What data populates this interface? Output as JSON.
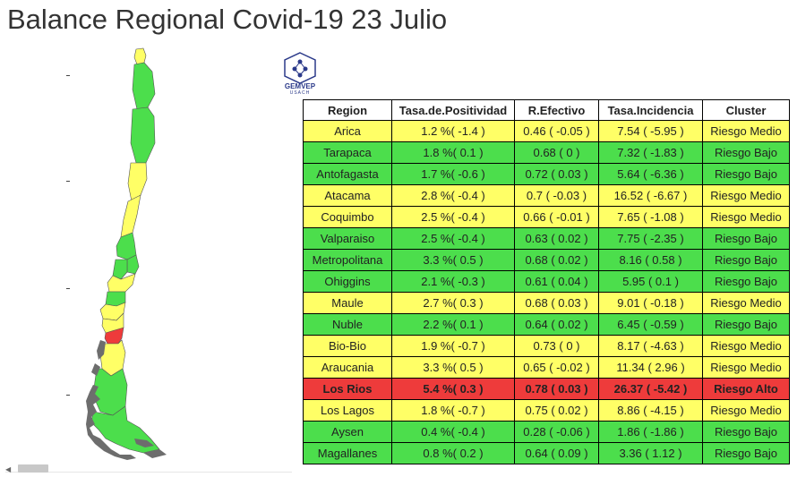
{
  "title": "Balance Regional Covid-19 23 Julio",
  "logo": {
    "name": "GEMVEP",
    "sub": "USACH"
  },
  "colors": {
    "medio": "#ffff66",
    "bajo": "#4cde4c",
    "alto": "#ee3b3b",
    "header": "#ffffff"
  },
  "table": {
    "headers": [
      "Region",
      "Tasa.de.Positividad",
      "R.Efectivo",
      "Tasa.Incidencia",
      "Cluster"
    ],
    "rows": [
      {
        "region": "Arica",
        "pos": "1.2 %( -1.4 )",
        "ref": "0.46 ( -0.05 )",
        "inc": "7.54 ( -5.95 )",
        "cluster": "Riesgo Medio",
        "level": "medio"
      },
      {
        "region": "Tarapaca",
        "pos": "1.8 %( 0.1 )",
        "ref": "0.68 ( 0 )",
        "inc": "7.32 ( -1.83 )",
        "cluster": "Riesgo Bajo",
        "level": "bajo"
      },
      {
        "region": "Antofagasta",
        "pos": "1.7 %( -0.6 )",
        "ref": "0.72 ( 0.03 )",
        "inc": "5.64 ( -6.36 )",
        "cluster": "Riesgo Bajo",
        "level": "bajo"
      },
      {
        "region": "Atacama",
        "pos": "2.8 %( -0.4 )",
        "ref": "0.7 ( -0.03 )",
        "inc": "16.52 ( -6.67 )",
        "cluster": "Riesgo Medio",
        "level": "medio"
      },
      {
        "region": "Coquimbo",
        "pos": "2.5 %( -0.4 )",
        "ref": "0.66 ( -0.01 )",
        "inc": "7.65 ( -1.08 )",
        "cluster": "Riesgo Medio",
        "level": "medio"
      },
      {
        "region": "Valparaiso",
        "pos": "2.5 %( -0.4 )",
        "ref": "0.63 ( 0.02 )",
        "inc": "7.75 ( -2.35 )",
        "cluster": "Riesgo Bajo",
        "level": "bajo"
      },
      {
        "region": "Metropolitana",
        "pos": "3.3 %( 0.5 )",
        "ref": "0.68 ( 0.02 )",
        "inc": "8.16 ( 0.58 )",
        "cluster": "Riesgo Bajo",
        "level": "bajo"
      },
      {
        "region": "Ohiggins",
        "pos": "2.1 %( -0.3 )",
        "ref": "0.61 ( 0.04 )",
        "inc": "5.95 ( 0.1 )",
        "cluster": "Riesgo Bajo",
        "level": "bajo"
      },
      {
        "region": "Maule",
        "pos": "2.7 %( 0.3 )",
        "ref": "0.68 ( 0.03 )",
        "inc": "9.01 ( -0.18 )",
        "cluster": "Riesgo Medio",
        "level": "medio"
      },
      {
        "region": "Nuble",
        "pos": "2.2 %( 0.1 )",
        "ref": "0.64 ( 0.02 )",
        "inc": "6.45 ( -0.59 )",
        "cluster": "Riesgo Bajo",
        "level": "bajo"
      },
      {
        "region": "Bio-Bio",
        "pos": "1.9 %( -0.7 )",
        "ref": "0.73 ( 0 )",
        "inc": "8.17 ( -4.63 )",
        "cluster": "Riesgo Medio",
        "level": "medio"
      },
      {
        "region": "Araucania",
        "pos": "3.3 %( 0.5 )",
        "ref": "0.65 ( -0.02 )",
        "inc": "11.34 ( 2.96 )",
        "cluster": "Riesgo Medio",
        "level": "medio"
      },
      {
        "region": "Los Rios",
        "pos": "5.4 %( 0.3 )",
        "ref": "0.78 ( 0.03 )",
        "inc": "26.37 ( -5.42 )",
        "cluster": "Riesgo Alto",
        "level": "alto"
      },
      {
        "region": "Los Lagos",
        "pos": "1.8 %( -0.7 )",
        "ref": "0.75 ( 0.02 )",
        "inc": "8.86 ( -4.15 )",
        "cluster": "Riesgo Medio",
        "level": "medio"
      },
      {
        "region": "Aysen",
        "pos": "0.4 %( -0.4 )",
        "ref": "0.28 ( -0.06 )",
        "inc": "1.86 ( -1.86 )",
        "cluster": "Riesgo Bajo",
        "level": "bajo"
      },
      {
        "region": "Magallanes",
        "pos": "0.8 %( 0.2 )",
        "ref": "0.64 ( 0.09 )",
        "inc": "3.36 ( 1.12 )",
        "cluster": "Riesgo Bajo",
        "level": "bajo"
      }
    ]
  },
  "map": {
    "regions": [
      {
        "name": "Arica",
        "level": "medio"
      },
      {
        "name": "Tarapaca",
        "level": "bajo"
      },
      {
        "name": "Antofagasta",
        "level": "bajo"
      },
      {
        "name": "Atacama",
        "level": "medio"
      },
      {
        "name": "Coquimbo",
        "level": "medio"
      },
      {
        "name": "Valparaiso",
        "level": "bajo"
      },
      {
        "name": "Metropolitana",
        "level": "bajo"
      },
      {
        "name": "Ohiggins",
        "level": "bajo"
      },
      {
        "name": "Maule",
        "level": "medio"
      },
      {
        "name": "Nuble",
        "level": "bajo"
      },
      {
        "name": "Bio-Bio",
        "level": "medio"
      },
      {
        "name": "Araucania",
        "level": "medio"
      },
      {
        "name": "Los Rios",
        "level": "alto"
      },
      {
        "name": "Los Lagos",
        "level": "medio"
      },
      {
        "name": "Aysen",
        "level": "bajo"
      },
      {
        "name": "Magallanes",
        "level": "bajo"
      }
    ]
  },
  "scrollbar": {
    "left_arrow_icon": "chevron-left-icon"
  }
}
